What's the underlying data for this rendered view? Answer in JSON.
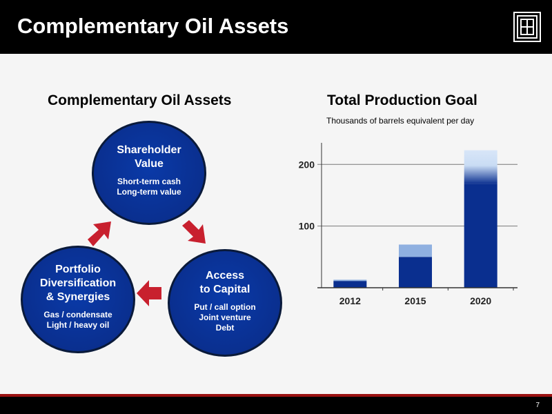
{
  "header": {
    "title": "Complementary Oil Assets"
  },
  "logo": {
    "icon": "company-logo-icon"
  },
  "left_panel": {
    "title": "Complementary Oil Assets",
    "circles": {
      "shareholder": {
        "heading_1": "Shareholder",
        "heading_2": "Value",
        "line_1": "Short-term cash",
        "line_2": "Long-term value"
      },
      "capital": {
        "heading_1": "Access",
        "heading_2": "to Capital",
        "line_1": "Put / call option",
        "line_2": "Joint venture",
        "line_3": "Debt"
      },
      "portfolio": {
        "heading_1": "Portfolio",
        "heading_2": "Diversification",
        "heading_3": "& Synergies",
        "line_1": "Gas / condensate",
        "line_2": "Light / heavy oil"
      }
    },
    "arrow_color": "#c8202e"
  },
  "right_panel": {
    "title": "Total Production Goal",
    "subtitle": "Thousands of barrels equivalent per day"
  },
  "chart_data": {
    "type": "bar",
    "stacked": true,
    "categories": [
      "2012",
      "2015",
      "2020"
    ],
    "series": [
      {
        "values": [
          11,
          50,
          168
        ],
        "color": "#0a2f8f"
      },
      {
        "values": [
          2,
          20,
          55
        ],
        "color": "#8fb0e0"
      }
    ],
    "yticks": [
      100,
      200
    ],
    "ylim": [
      0,
      235
    ],
    "ylabel": "",
    "xlabel": ""
  },
  "footer": {
    "page_number": "7"
  }
}
